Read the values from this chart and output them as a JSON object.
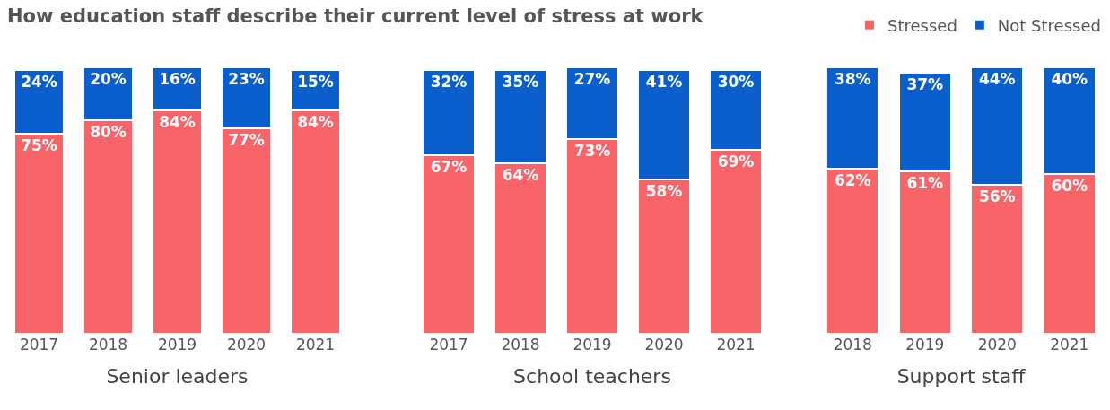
{
  "chart_data": [
    {
      "type": "bar",
      "title": "How education staff describe their current level of stress at work",
      "xlabel": "Senior leaders",
      "categories": [
        "2017",
        "2018",
        "2019",
        "2020",
        "2021"
      ],
      "stacked": true,
      "series": [
        {
          "color": "#f86468",
          "values": [
            75,
            80,
            84,
            77,
            84
          ],
          "value_labels": [
            "75%",
            "80%",
            "84%",
            "77%",
            "84%"
          ]
        },
        {
          "color": "#0a5fcc",
          "values": [
            24,
            20,
            16,
            23,
            15
          ],
          "value_labels": [
            "24%",
            "20%",
            "16%",
            "23%",
            "15%"
          ]
        }
      ]
    },
    {
      "type": "bar",
      "xlabel": "School teachers",
      "categories": [
        "2017",
        "2018",
        "2019",
        "2020",
        "2021"
      ],
      "stacked": true,
      "series": [
        {
          "color": "#f86468",
          "values": [
            67,
            64,
            73,
            58,
            69
          ],
          "value_labels": [
            "67%",
            "64%",
            "73%",
            "58%",
            "69%"
          ]
        },
        {
          "color": "#0a5fcc",
          "values": [
            32,
            35,
            27,
            41,
            30
          ],
          "value_labels": [
            "32%",
            "35%",
            "27%",
            "41%",
            "30%"
          ]
        }
      ]
    },
    {
      "type": "bar",
      "xlabel": "Support staff",
      "categories": [
        "2018",
        "2019",
        "2020",
        "2021"
      ],
      "stacked": true,
      "legend": "top right",
      "series": [
        {
          "name": "Stressed",
          "color": "#f86468",
          "values": [
            62,
            61,
            56,
            60
          ],
          "value_labels": [
            "62%",
            "61%",
            "56%",
            "60%"
          ]
        },
        {
          "name": "Not Stressed",
          "color": "#0a5fcc",
          "values": [
            38,
            37,
            44,
            40
          ],
          "value_labels": [
            "38%",
            "37%",
            "44%",
            "40%"
          ]
        }
      ]
    }
  ]
}
